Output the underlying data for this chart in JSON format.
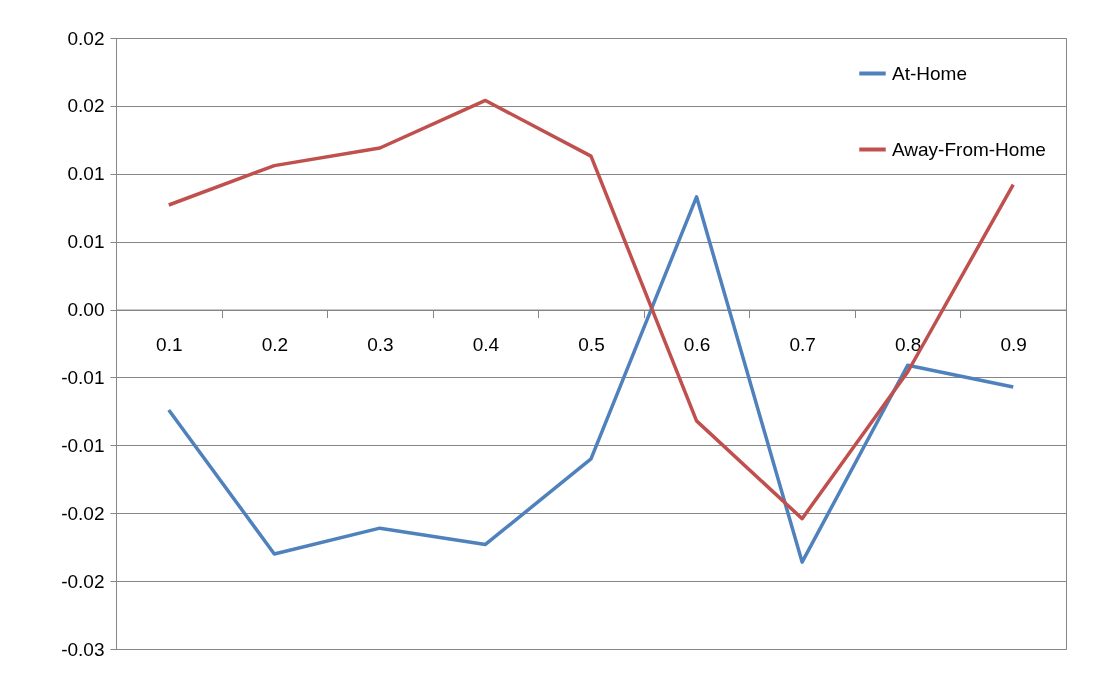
{
  "chart_data": {
    "type": "line",
    "categories": [
      "0.1",
      "0.2",
      "0.3",
      "0.4",
      "0.5",
      "0.6",
      "0.7",
      "0.8",
      "0.9"
    ],
    "series": [
      {
        "name": "At-Home",
        "color": "#4f81bd",
        "values": [
          -0.0074,
          -0.018,
          -0.0161,
          -0.0173,
          -0.011,
          0.0083,
          -0.0186,
          -0.0041,
          -0.0057
        ]
      },
      {
        "name": "Away-From-Home",
        "color": "#c0504d",
        "values": [
          0.0077,
          0.0106,
          0.0119,
          0.0154,
          0.0113,
          -0.0082,
          -0.0154,
          -0.0046,
          0.0092
        ]
      }
    ],
    "ylim": [
      -0.025,
      0.02
    ],
    "yticks": [
      {
        "value": -0.025,
        "label": "-0.03"
      },
      {
        "value": -0.02,
        "label": "-0.02"
      },
      {
        "value": -0.015,
        "label": "-0.02"
      },
      {
        "value": -0.01,
        "label": "-0.01"
      },
      {
        "value": -0.005,
        "label": "-0.01"
      },
      {
        "value": 0,
        "label": "0.00"
      },
      {
        "value": 0.005,
        "label": "0.01"
      },
      {
        "value": 0.01,
        "label": "0.01"
      },
      {
        "value": 0.015,
        "label": "0.02"
      },
      {
        "value": 0.02,
        "label": "0.02"
      }
    ],
    "grid": "y",
    "legend": "top right"
  }
}
